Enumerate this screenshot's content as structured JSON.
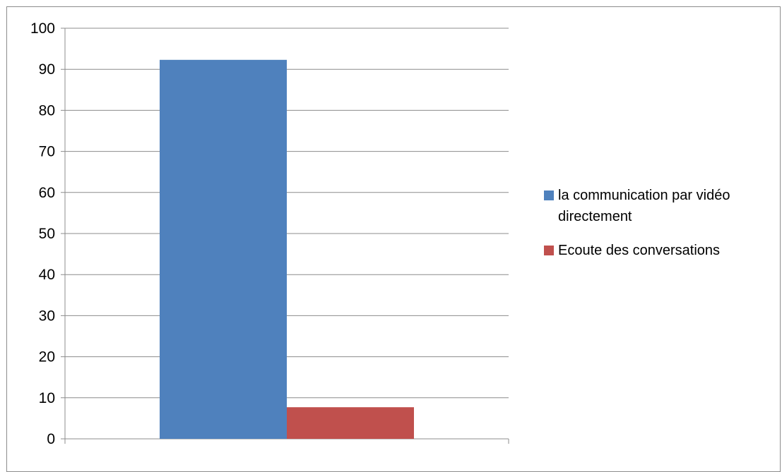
{
  "chart_data": {
    "type": "bar",
    "categories": [
      ""
    ],
    "series": [
      {
        "name": "la communication par vidéo directement",
        "values": [
          92.3
        ],
        "color": "#4f81bd"
      },
      {
        "name": "Ecoute des conversations",
        "values": [
          7.7
        ],
        "color": "#c0504d"
      }
    ],
    "ylim": [
      0,
      100
    ],
    "yticks": [
      0,
      10,
      20,
      30,
      40,
      50,
      60,
      70,
      80,
      90,
      100
    ],
    "grid": true,
    "legend_position": "right",
    "title": "",
    "xlabel": "",
    "ylabel": ""
  }
}
